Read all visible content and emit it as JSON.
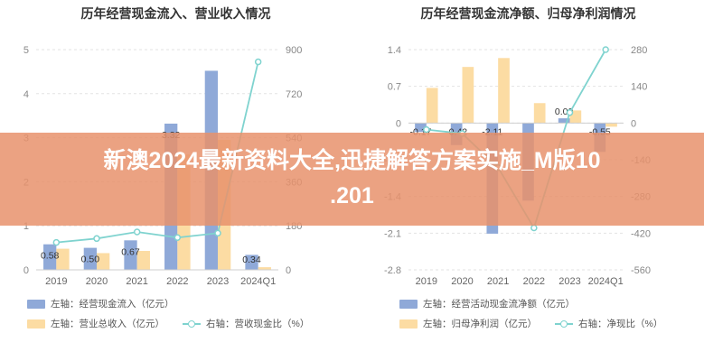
{
  "chart_data": [
    {
      "type": "bar",
      "title": "历年经营现金流入、营业收入情况",
      "categories": [
        "2019",
        "2020",
        "2021",
        "2022",
        "2023",
        "2024Q1"
      ],
      "y_left_ticks": [
        "0",
        "1",
        "2",
        "3",
        "4",
        "5"
      ],
      "y_right_ticks": [
        "0",
        "180",
        "360",
        "540",
        "720",
        "900"
      ],
      "ylim_left": [
        0,
        5
      ],
      "ylim_right": [
        0,
        900
      ],
      "series": [
        {
          "name": "左轴：经营现金流入（亿元）",
          "axis": "left",
          "kind": "bar",
          "color": "#8fa9d8",
          "values": [
            0.58,
            0.5,
            0.67,
            3.32,
            4.52,
            0.34
          ]
        },
        {
          "name": "左轴：营业总收入（亿元）",
          "axis": "left",
          "kind": "bar",
          "color": "#fcdca3",
          "values": [
            0.48,
            0.38,
            0.43,
            2.62,
            2.95,
            0.06
          ]
        },
        {
          "name": "右轴：营收现金比（%）",
          "axis": "right",
          "kind": "line",
          "color": "#7fd3cf",
          "values": [
            112,
            128,
            155,
            132,
            150,
            850
          ]
        }
      ],
      "data_labels": [
        "0.58",
        "0.50",
        "0.67",
        "3.32",
        "",
        "0.34"
      ]
    },
    {
      "type": "bar",
      "title": "历年经营现金流净额、归母净利润情况",
      "categories": [
        "2019",
        "2020",
        "2021",
        "2022",
        "2023",
        "2024Q1"
      ],
      "y_left_ticks": [
        "-2.8",
        "-2.1",
        "-1.4",
        "-0.7",
        "0",
        "0.7",
        "1.4"
      ],
      "y_right_ticks": [
        "-560",
        "-420",
        "-280",
        "-140",
        "0",
        "140",
        "280"
      ],
      "ylim_left": [
        -2.8,
        1.4
      ],
      "ylim_right": [
        -560,
        280
      ],
      "series": [
        {
          "name": "左轴：经营活动现金流净额（亿元）",
          "axis": "left",
          "kind": "bar",
          "color": "#8fa9d8",
          "values": [
            -0.17,
            -0.42,
            -2.11,
            -1.48,
            0.09,
            -0.55
          ]
        },
        {
          "name": "左轴：归母净利润（亿元）",
          "axis": "left",
          "kind": "bar",
          "color": "#fcdca3",
          "values": [
            0.67,
            1.07,
            1.24,
            0.38,
            0.24,
            -0.07
          ]
        },
        {
          "name": "右轴：净现比（%）",
          "axis": "right",
          "kind": "line",
          "color": "#7fd3cf",
          "values": [
            -25,
            -40,
            -170,
            -400,
            40,
            280
          ]
        }
      ],
      "data_labels": [
        "-0.17",
        "-0.42",
        "-2.11",
        "",
        "0.09",
        "-0.55"
      ]
    }
  ],
  "banner": {
    "line1": "新澳2024最新资料大全,迅捷解答方案实施_M版10",
    "line2": ".201"
  }
}
